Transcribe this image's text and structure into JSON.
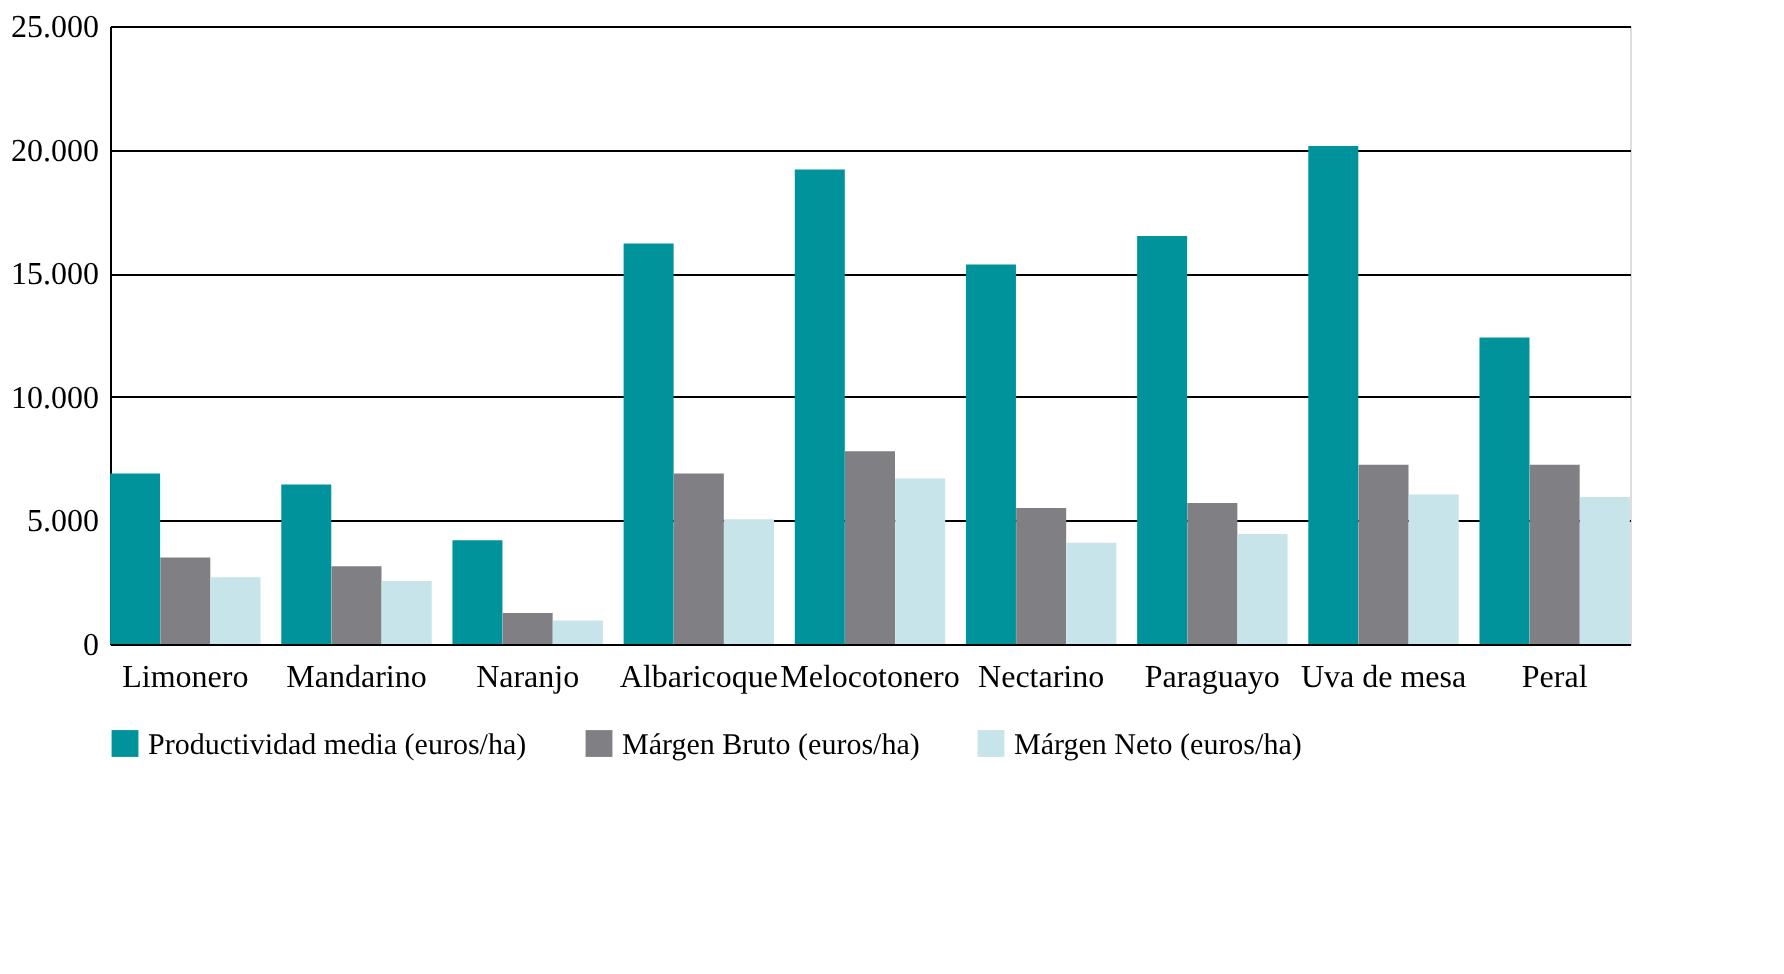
{
  "chart_data": {
    "type": "bar",
    "categories": [
      "Limonero",
      "Mandarino",
      "Naranjo",
      "Albaricoque",
      "Melocotonero",
      "Nectarino",
      "Paraguayo",
      "Uva de mesa",
      "Peral"
    ],
    "series": [
      {
        "name": "Productividad media (euros/ha)",
        "color": "#00939b",
        "values": [
          6900,
          6450,
          4200,
          16200,
          19200,
          15350,
          16500,
          20150,
          12400
        ]
      },
      {
        "name": "Márgen Bruto (euros/ha)",
        "color": "#807f83",
        "values": [
          3500,
          3150,
          1250,
          6900,
          7800,
          5500,
          5700,
          7250,
          7250
        ]
      },
      {
        "name": "Márgen Neto (euros/ha)",
        "color": "#c6e4e9",
        "values": [
          2700,
          2550,
          950,
          5050,
          6700,
          4100,
          4450,
          6050,
          5950
        ]
      }
    ],
    "ylim": [
      0,
      25000
    ],
    "yticks": [
      {
        "value": 0,
        "label": "0"
      },
      {
        "value": 5000,
        "label": "5.000"
      },
      {
        "value": 10000,
        "label": "10.000"
      },
      {
        "value": 15000,
        "label": "15.000"
      },
      {
        "value": 20000,
        "label": "20.000"
      },
      {
        "value": 25000,
        "label": "25.000"
      }
    ],
    "grid": "y",
    "legend": "bottom"
  }
}
